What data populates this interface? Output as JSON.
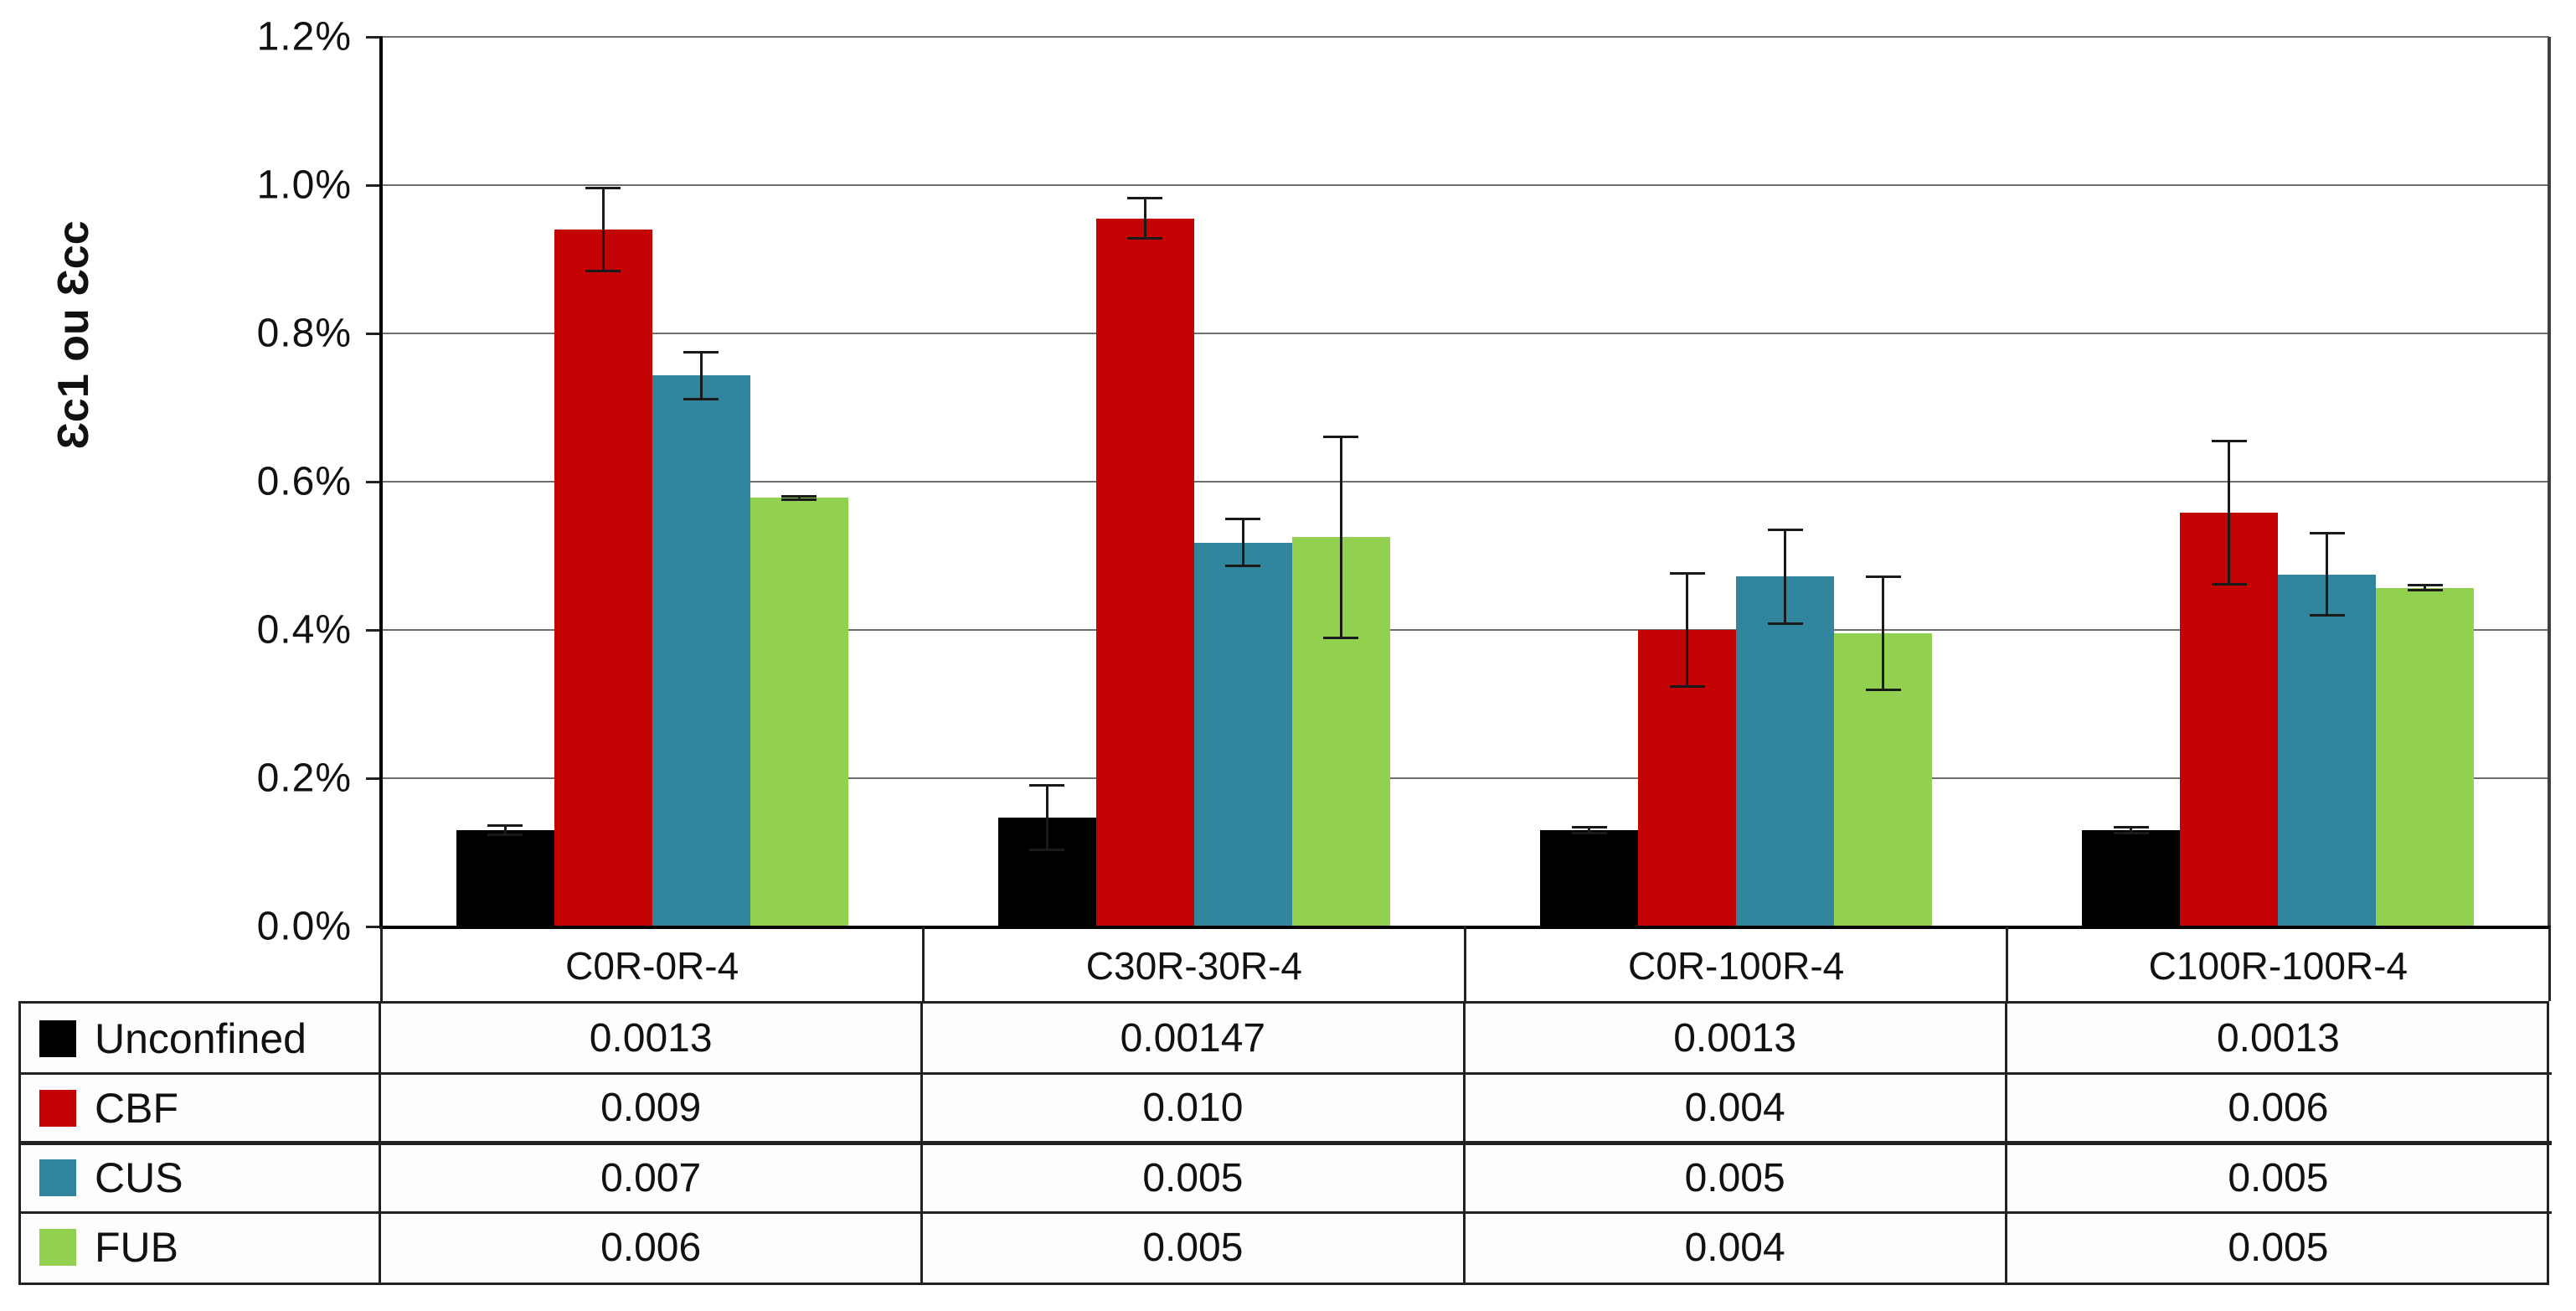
{
  "chart_data": {
    "type": "bar",
    "title": "",
    "ylabel": "Ɛc1 ou Ɛcc",
    "xlabel": "",
    "categories": [
      "C0R-0R-4",
      "C30R-30R-4",
      "C0R-100R-4",
      "C100R-100R-4"
    ],
    "series": [
      {
        "name": "Unconfined",
        "color": "#000000",
        "values_pct": [
          0.13,
          0.147,
          0.13,
          0.13
        ],
        "err_pct": [
          0.008,
          0.045,
          0.006,
          0.006
        ],
        "table_values": [
          "0.0013",
          "0.00147",
          "0.0013",
          "0.0013"
        ]
      },
      {
        "name": "CBF",
        "color": "#C40404",
        "values_pct": [
          0.94,
          0.955,
          0.4,
          0.558
        ],
        "err_pct": [
          0.058,
          0.029,
          0.078,
          0.098
        ],
        "table_values": [
          "0.009",
          "0.010",
          "0.004",
          "0.006"
        ]
      },
      {
        "name": "CUS",
        "color": "#31859C",
        "values_pct": [
          0.743,
          0.518,
          0.472,
          0.475
        ],
        "err_pct": [
          0.033,
          0.033,
          0.065,
          0.057
        ],
        "table_values": [
          "0.007",
          "0.005",
          "0.005",
          "0.005"
        ]
      },
      {
        "name": "FUB",
        "color": "#92D050",
        "values_pct": [
          0.578,
          0.525,
          0.395,
          0.457
        ],
        "err_pct": [
          0.004,
          0.137,
          0.078,
          0.005
        ],
        "table_values": [
          "0.006",
          "0.005",
          "0.004",
          "0.005"
        ]
      }
    ],
    "ylim": [
      0,
      1.2
    ],
    "ytick_labels": [
      "1.2%",
      "1.0%",
      "0.8%",
      "0.6%",
      "0.4%",
      "0.2%",
      "0.0%"
    ],
    "ytick_values": [
      1.2,
      1.0,
      0.8,
      0.6,
      0.4,
      0.2,
      0.0
    ],
    "grid": true,
    "legend_position": "table-left-column"
  },
  "colors": {
    "gridline": "#6e6e6e",
    "axis": "#000000",
    "table_border": "#222222",
    "background": "#ffffff"
  }
}
